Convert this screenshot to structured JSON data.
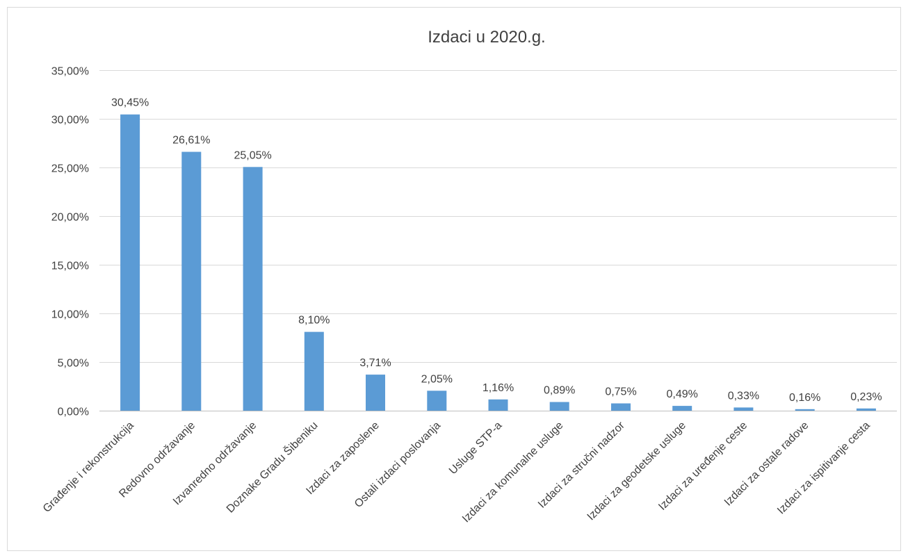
{
  "chart_data": {
    "type": "bar",
    "title": "Izdaci u 2020.g.",
    "xlabel": "",
    "ylabel": "",
    "ylim": [
      0,
      35
    ],
    "y_ticks": [
      0,
      5,
      10,
      15,
      20,
      25,
      30,
      35
    ],
    "y_tick_labels": [
      "0,00%",
      "5,00%",
      "10,00%",
      "15,00%",
      "20,00%",
      "25,00%",
      "30,00%",
      "35,00%"
    ],
    "grid": true,
    "legend": "none",
    "bar_color": "#5b9bd5",
    "categories": [
      "Građenje i rekonstrukcija",
      "Redovno održavanje",
      "Izvanredno održavanje",
      "Doznake Gradu Šibeniku",
      "Izdaci za zaposlene",
      "Ostali izdaci poslovanja",
      "Usluge STP-a",
      "Izdaci za komunalne usluge",
      "Izdaci za stručni nadzor",
      "Izdaci za geodetske usluge",
      "Izdaci za uređenje ceste",
      "Izdaci za ostale radove",
      "Izdaci za ispitivanje cesta"
    ],
    "values": [
      30.45,
      26.61,
      25.05,
      8.1,
      3.71,
      2.05,
      1.16,
      0.89,
      0.75,
      0.49,
      0.33,
      0.16,
      0.23
    ],
    "data_labels": [
      "30,45%",
      "26,61%",
      "25,05%",
      "8,10%",
      "3,71%",
      "2,05%",
      "1,16%",
      "0,89%",
      "0,75%",
      "0,49%",
      "0,33%",
      "0,16%",
      "0,23%"
    ]
  }
}
